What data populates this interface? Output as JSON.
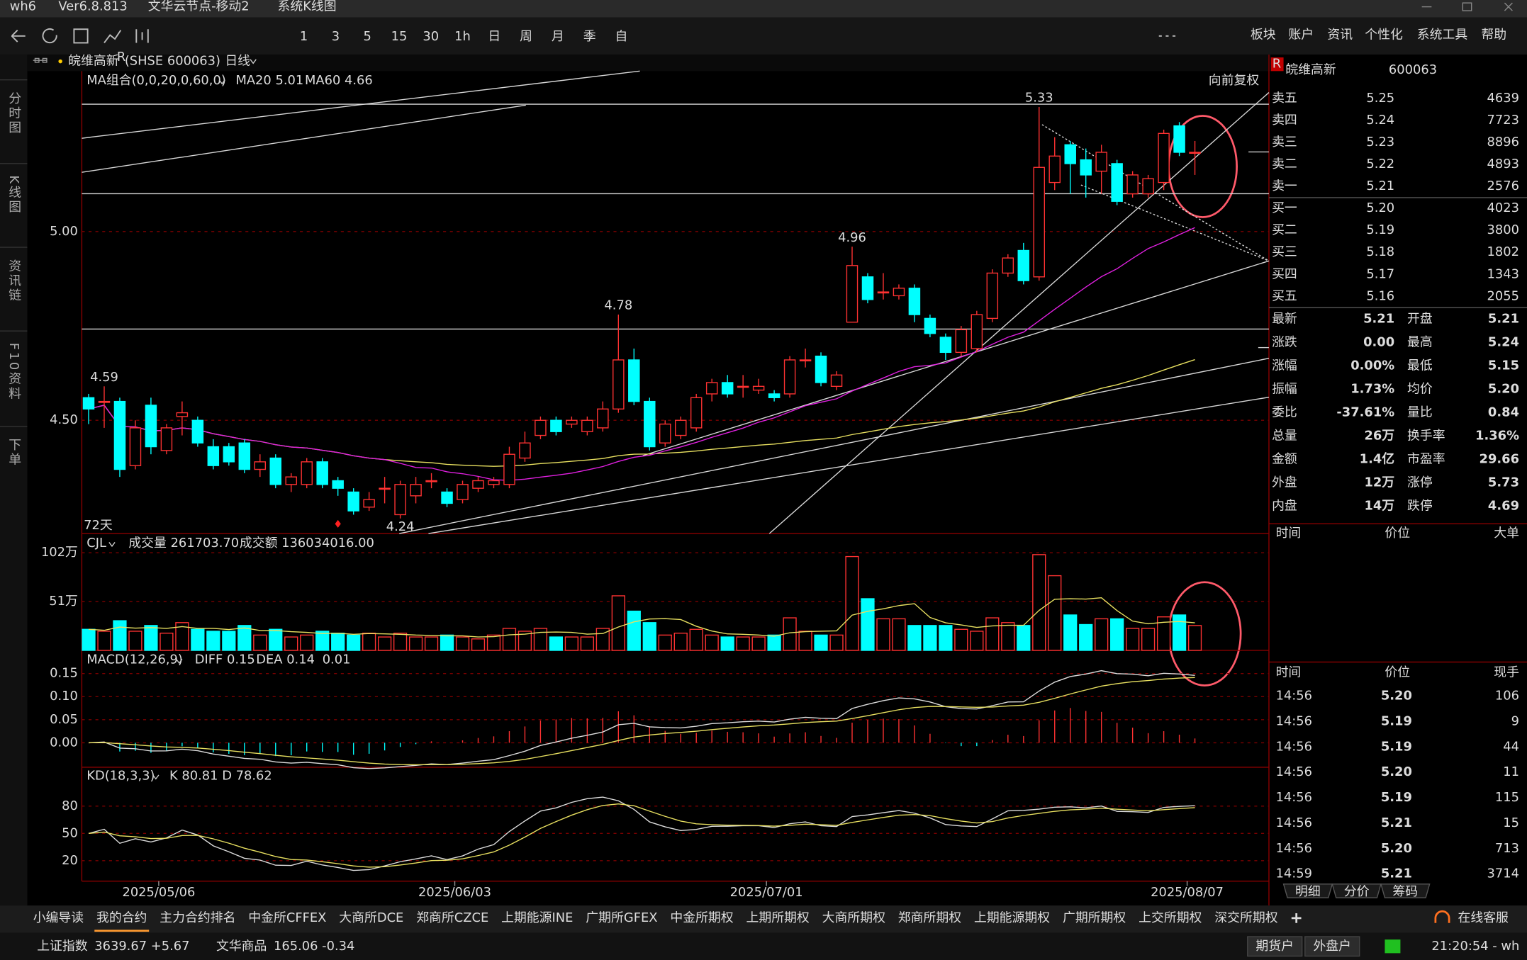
{
  "window": {
    "title": "wh6",
    "version": "Ver6.8.813",
    "tabs": [
      "文华云节点-移动2",
      "系统K线图"
    ]
  },
  "toolbar": {
    "periods": [
      "1",
      "3",
      "5",
      "15",
      "30",
      "1h",
      "日",
      "周",
      "月",
      "季",
      "自"
    ],
    "menu": [
      "板块",
      "账户",
      "资讯",
      "个性化",
      "系统工具",
      "帮助"
    ]
  },
  "sidebar": [
    "分时图",
    "K线图",
    "资讯链",
    "F10资料",
    "下单"
  ],
  "chart": {
    "name": "皖维高新",
    "mark": "R",
    "code": "(SHSE 600063)",
    "period": "日线",
    "ma_label": "MA组合(0,0,20,0,60,0)",
    "ma20": "MA20 5.01",
    "ma60": "MA60 4.66",
    "adjust": "向前复权",
    "days": "72天",
    "ylim": [
      4.2,
      5.42
    ],
    "yticks": [
      {
        "value": 5,
        "label": "5.00"
      },
      {
        "value": 4.5,
        "label": "4.50"
      }
    ],
    "peak_labels": [
      5.33,
      4.96,
      4.78,
      4.59
    ],
    "trough_labels": [
      4.24
    ],
    "categories": [
      null,
      null,
      null,
      null,
      "2025/05/06",
      null,
      null,
      null,
      null,
      null,
      null,
      null,
      null,
      null,
      null,
      null,
      null,
      null,
      null,
      null,
      null,
      null,
      null,
      "2025/06/03",
      null,
      null,
      null,
      null,
      null,
      null,
      null,
      null,
      null,
      null,
      null,
      null,
      null,
      null,
      null,
      null,
      null,
      null,
      null,
      "2025/07/01",
      null,
      null,
      null,
      null,
      null,
      null,
      null,
      null,
      null,
      null,
      null,
      null,
      null,
      null,
      null,
      null,
      null,
      null,
      null,
      null,
      null,
      null,
      null,
      null,
      null,
      null,
      "2025/08/07",
      null
    ],
    "candles": [
      [
        4.56,
        4.57,
        4.49,
        4.53
      ],
      [
        4.55,
        4.59,
        4.48,
        4.55
      ],
      [
        4.55,
        4.56,
        4.35,
        4.37
      ],
      [
        4.38,
        4.5,
        4.37,
        4.48
      ],
      [
        4.54,
        4.56,
        4.41,
        4.43
      ],
      [
        4.42,
        4.49,
        4.41,
        4.48
      ],
      [
        4.51,
        4.55,
        4.46,
        4.52
      ],
      [
        4.5,
        4.51,
        4.43,
        4.44
      ],
      [
        4.43,
        4.45,
        4.37,
        4.38
      ],
      [
        4.43,
        4.44,
        4.38,
        4.39
      ],
      [
        4.44,
        4.45,
        4.36,
        4.37
      ],
      [
        4.37,
        4.41,
        4.35,
        4.39
      ],
      [
        4.4,
        4.41,
        4.32,
        4.33
      ],
      [
        4.33,
        4.36,
        4.31,
        4.35
      ],
      [
        4.33,
        4.4,
        4.32,
        4.39
      ],
      [
        4.39,
        4.4,
        4.32,
        4.33
      ],
      [
        4.34,
        4.35,
        4.3,
        4.32
      ],
      [
        4.31,
        4.32,
        4.25,
        4.26
      ],
      [
        4.27,
        4.31,
        4.26,
        4.29
      ],
      [
        4.32,
        4.35,
        4.28,
        4.32
      ],
      [
        4.25,
        4.34,
        4.24,
        4.33
      ],
      [
        4.3,
        4.35,
        4.28,
        4.33
      ],
      [
        4.34,
        4.36,
        4.32,
        4.34
      ],
      [
        4.31,
        4.32,
        4.27,
        4.28
      ],
      [
        4.29,
        4.34,
        4.28,
        4.33
      ],
      [
        4.32,
        4.35,
        4.31,
        4.34
      ],
      [
        4.33,
        4.35,
        4.32,
        4.34
      ],
      [
        4.33,
        4.43,
        4.32,
        4.41
      ],
      [
        4.4,
        4.47,
        4.39,
        4.44
      ],
      [
        4.46,
        4.51,
        4.45,
        4.5
      ],
      [
        4.5,
        4.51,
        4.46,
        4.47
      ],
      [
        4.49,
        4.51,
        4.48,
        4.5
      ],
      [
        4.47,
        4.51,
        4.46,
        4.5
      ],
      [
        4.48,
        4.55,
        4.47,
        4.53
      ],
      [
        4.53,
        4.78,
        4.52,
        4.66
      ],
      [
        4.66,
        4.69,
        4.54,
        4.55
      ],
      [
        4.55,
        4.56,
        4.42,
        4.43
      ],
      [
        4.44,
        4.5,
        4.43,
        4.49
      ],
      [
        4.46,
        4.51,
        4.45,
        4.5
      ],
      [
        4.48,
        4.57,
        4.47,
        4.56
      ],
      [
        4.57,
        4.61,
        4.55,
        4.6
      ],
      [
        4.6,
        4.62,
        4.56,
        4.57
      ],
      [
        4.59,
        4.62,
        4.56,
        4.59
      ],
      [
        4.58,
        4.61,
        4.57,
        4.59
      ],
      [
        4.57,
        4.58,
        4.55,
        4.56
      ],
      [
        4.57,
        4.67,
        4.56,
        4.66
      ],
      [
        4.66,
        4.69,
        4.64,
        4.66
      ],
      [
        4.67,
        4.68,
        4.59,
        4.6
      ],
      [
        4.59,
        4.63,
        4.58,
        4.62
      ],
      [
        4.76,
        4.96,
        4.76,
        4.91
      ],
      [
        4.88,
        4.89,
        4.81,
        4.82
      ],
      [
        4.84,
        4.89,
        4.82,
        4.84
      ],
      [
        4.83,
        4.86,
        4.82,
        4.85
      ],
      [
        4.85,
        4.86,
        4.76,
        4.78
      ],
      [
        4.77,
        4.78,
        4.72,
        4.73
      ],
      [
        4.72,
        4.73,
        4.66,
        4.68
      ],
      [
        4.68,
        4.75,
        4.67,
        4.74
      ],
      [
        4.69,
        4.79,
        4.68,
        4.78
      ],
      [
        4.77,
        4.9,
        4.76,
        4.89
      ],
      [
        4.89,
        4.94,
        4.88,
        4.93
      ],
      [
        4.95,
        4.97,
        4.86,
        4.87
      ],
      [
        4.88,
        5.33,
        4.87,
        5.17
      ],
      [
        5.13,
        5.25,
        5.11,
        5.2
      ],
      [
        5.23,
        5.24,
        5.1,
        5.18
      ],
      [
        5.19,
        5.22,
        5.09,
        5.15
      ],
      [
        5.16,
        5.23,
        5.1,
        5.21
      ],
      [
        5.18,
        5.19,
        5.07,
        5.08
      ],
      [
        5.1,
        5.16,
        5.09,
        5.15
      ],
      [
        5.1,
        5.15,
        5.09,
        5.14
      ],
      [
        5.13,
        5.27,
        5.11,
        5.26
      ],
      [
        5.28,
        5.29,
        5.2,
        5.21
      ],
      [
        5.21,
        5.24,
        5.15,
        5.21
      ]
    ],
    "colors": {
      "up": "#ff3232",
      "down": "#00ffff",
      "ma20": "#e020e0",
      "ma60": "#e8e060",
      "frame": "#8a0000"
    }
  },
  "volume": {
    "label": "CJL",
    "vol": "成交量 261703.70",
    "amt": "成交额 136034016.00",
    "ylim": [
      0,
      120
    ],
    "yticks": [
      {
        "value": 102,
        "label": "102万"
      },
      {
        "value": 51,
        "label": "51万"
      }
    ],
    "values": [
      22,
      20,
      31,
      20,
      26,
      18,
      29,
      22,
      20,
      20,
      26,
      16,
      22,
      14,
      16,
      20,
      18,
      16,
      18,
      14,
      18,
      14,
      14,
      16,
      14,
      12,
      16,
      23,
      20,
      23,
      14,
      14,
      14,
      23,
      57,
      41,
      29,
      16,
      18,
      22,
      16,
      14,
      14,
      14,
      16,
      34,
      20,
      16,
      16,
      98,
      54,
      33,
      33,
      26,
      26,
      26,
      22,
      20,
      34,
      29,
      26,
      100,
      78,
      37,
      27,
      33,
      33,
      23,
      23,
      35,
      37,
      26
    ]
  },
  "macd": {
    "label": "MACD(12,26,9)",
    "diff": "DIFF 0.15",
    "dea": "DEA 0.14",
    "macd": "0.01",
    "ylim": [
      -0.053,
      0.196
    ],
    "yticks": [
      {
        "value": 0.15,
        "label": "0.15"
      },
      {
        "value": 0.1,
        "label": "0.10"
      },
      {
        "value": 0.05,
        "label": "0.05"
      },
      {
        "value": 0,
        "label": "0.00"
      }
    ]
  },
  "kd": {
    "label": "KD(18,3,3)",
    "k": "K 80.81",
    "d": "D 78.62",
    "ylim": [
      -2.5,
      120.7
    ],
    "yticks": [
      80,
      50,
      20
    ]
  },
  "quote": {
    "flag": "R",
    "name": "皖维高新",
    "code": "600063",
    "asks": [
      [
        "卖五",
        "5.25",
        "4639"
      ],
      [
        "卖四",
        "5.24",
        "7723"
      ],
      [
        "卖三",
        "5.23",
        "8896"
      ],
      [
        "卖二",
        "5.22",
        "4893"
      ],
      [
        "卖一",
        "5.21",
        "2576"
      ]
    ],
    "bids": [
      [
        "买一",
        "5.20",
        "4023"
      ],
      [
        "买二",
        "5.19",
        "3800"
      ],
      [
        "买三",
        "5.18",
        "1802"
      ],
      [
        "买四",
        "5.17",
        "1343"
      ],
      [
        "买五",
        "5.16",
        "2055"
      ]
    ],
    "stats": [
      {
        "label": "最新",
        "value": "5.21",
        "color": "#ffffff",
        "label2": "开盘",
        "value2": "5.21",
        "color2": "#ffffff"
      },
      {
        "label": "涨跌",
        "value": "0.00",
        "color": "#ffffff",
        "label2": "最高",
        "value2": "5.24",
        "color2": "#ff3232"
      },
      {
        "label": "涨幅",
        "value": "0.00%",
        "color": "#ffffff",
        "label2": "最低",
        "value2": "5.15",
        "color2": "#00e000"
      },
      {
        "label": "振幅",
        "value": "1.73%",
        "color": "#ffff00",
        "label2": "均价",
        "value2": "5.20",
        "color2": "#00e000"
      },
      {
        "label": "委比",
        "value": "-37.61%",
        "color": "#ffff00",
        "label2": "量比",
        "value2": "0.84",
        "color2": "#ffff00"
      },
      {
        "label": "总量",
        "value": "26万",
        "color": "#ffff00",
        "label2": "换手率",
        "value2": "1.36%",
        "color2": "#ffff00"
      },
      {
        "label": "金额",
        "value": "1.4亿",
        "color": "#ff3232",
        "label2": "市盈率",
        "value2": "29.66",
        "color2": "#ffff00"
      },
      {
        "label": "外盘",
        "value": "12万",
        "color": "#ff3232",
        "label2": "涨停",
        "value2": "5.73",
        "color2": "#ff3232"
      },
      {
        "label": "内盘",
        "value": "14万",
        "color": "#00e000",
        "label2": "跌停",
        "value2": "4.69",
        "color2": "#00e000"
      }
    ],
    "ticks_header": [
      "时间",
      "价位",
      "大单"
    ],
    "trades_header": [
      "时间",
      "价位",
      "现手"
    ],
    "trades": [
      [
        "14:56",
        "5.20",
        "106"
      ],
      [
        "14:56",
        "5.19",
        "9"
      ],
      [
        "14:56",
        "5.19",
        "44"
      ],
      [
        "14:56",
        "5.20",
        "11"
      ],
      [
        "14:56",
        "5.19",
        "115"
      ],
      [
        "14:56",
        "5.21",
        "15"
      ],
      [
        "14:56",
        "5.20",
        "713"
      ],
      [
        "14:59",
        "5.21",
        "3714"
      ]
    ],
    "tabs": [
      "明细",
      "分价",
      "筹码"
    ]
  },
  "bottom_tabs": {
    "items": [
      "小编导读",
      "我的合约",
      "主力合约排名",
      "中金所CFFEX",
      "大商所DCE",
      "郑商所CZCE",
      "上期能源INE",
      "广期所GFEX",
      "中金所期权",
      "上期所期权",
      "大商所期权",
      "郑商所期权",
      "上期能源期权",
      "广期所期权",
      "上交所期权",
      "深交所期权"
    ],
    "selected": 1,
    "service": "在线客服"
  },
  "status": {
    "index1": "上证指数",
    "index1_value": "3639.67 +5.67",
    "index2": "文华商品",
    "index2_value": "165.06 -0.34",
    "account1": "期货户",
    "account2": "外盘户",
    "time": "21:20:54 - wh"
  }
}
